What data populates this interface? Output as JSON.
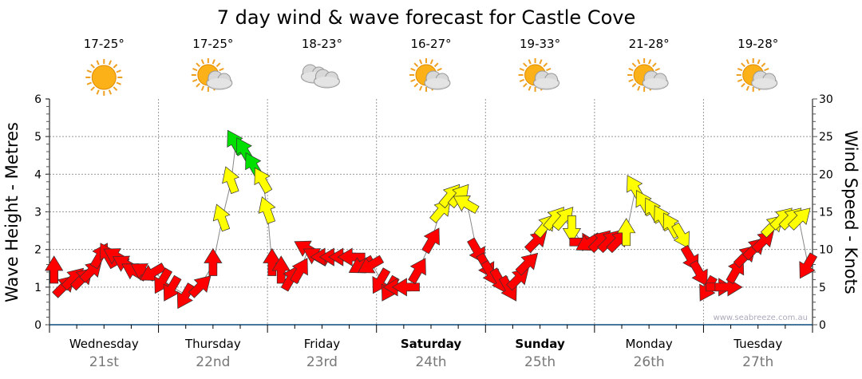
{
  "chart_data": {
    "type": "scatter",
    "title": "7 day wind & wave forecast for Castle Cove",
    "ylabel_left": "Wave Height - Metres",
    "ylabel_right": "Wind Speed - Knots",
    "ylim_left": [
      0,
      6
    ],
    "ylim_right": [
      0,
      30
    ],
    "yticks_left": [
      "0",
      "1",
      "2",
      "3",
      "4",
      "5",
      "6"
    ],
    "yticks_right": [
      "0",
      "5",
      "10",
      "15",
      "20",
      "25",
      "30"
    ],
    "grid": true,
    "watermark": "www.seabreeze.com.au",
    "days": [
      {
        "name": "Wednesday",
        "date": "21st",
        "temp": "17-25°",
        "icon": "sun",
        "bold": false
      },
      {
        "name": "Thursday",
        "date": "22nd",
        "temp": "17-25°",
        "icon": "sun-cloud",
        "bold": false
      },
      {
        "name": "Friday",
        "date": "23rd",
        "temp": "18-23°",
        "icon": "cloud",
        "bold": false
      },
      {
        "name": "Saturday",
        "date": "24th",
        "temp": "16-27°",
        "icon": "sun-cloud",
        "bold": true
      },
      {
        "name": "Sunday",
        "date": "25th",
        "temp": "19-33°",
        "icon": "sun-cloud",
        "bold": true
      },
      {
        "name": "Monday",
        "date": "26th",
        "temp": "21-28°",
        "icon": "sun-cloud",
        "bold": false
      },
      {
        "name": "Tuesday",
        "date": "27th",
        "temp": "19-28°",
        "icon": "sun-cloud",
        "bold": false
      }
    ],
    "wind_colors": {
      "light": "#ff0000",
      "moderate": "#ffff00",
      "strong": "#00e000"
    },
    "wind_series_fields": [
      "hour",
      "knots",
      "direction_deg"
    ],
    "wind_series": [
      [
        1,
        7,
        0
      ],
      [
        3,
        5,
        45
      ],
      [
        5,
        6,
        45
      ],
      [
        7,
        6,
        45
      ],
      [
        9,
        7,
        45
      ],
      [
        11,
        9,
        30
      ],
      [
        13,
        9,
        -30
      ],
      [
        15,
        9,
        -60
      ],
      [
        17,
        8,
        -60
      ],
      [
        19,
        7,
        -60
      ],
      [
        21,
        7,
        -60
      ],
      [
        23,
        7,
        -120
      ],
      [
        25,
        6,
        -150
      ],
      [
        27,
        5,
        -150
      ],
      [
        30,
        4,
        -150
      ],
      [
        33,
        5,
        45
      ],
      [
        36,
        8,
        0
      ],
      [
        38,
        14,
        -20
      ],
      [
        40,
        19,
        -20
      ],
      [
        41,
        24,
        -30
      ],
      [
        43,
        23,
        -30
      ],
      [
        45,
        21,
        -30
      ],
      [
        47,
        19,
        -30
      ],
      [
        48,
        15,
        -20
      ],
      [
        49,
        8,
        0
      ],
      [
        51,
        7,
        0
      ],
      [
        53,
        6,
        30
      ],
      [
        55,
        7,
        30
      ],
      [
        57,
        10,
        -60
      ],
      [
        59,
        9,
        -60
      ],
      [
        61,
        9,
        -90
      ],
      [
        63,
        9,
        -90
      ],
      [
        65,
        9,
        -90
      ],
      [
        67,
        9,
        -90
      ],
      [
        69,
        8,
        -120
      ],
      [
        71,
        8,
        -120
      ],
      [
        73,
        6,
        -150
      ],
      [
        75,
        5,
        -150
      ],
      [
        77,
        5,
        -90
      ],
      [
        79,
        5,
        -90
      ],
      [
        81,
        7,
        30
      ],
      [
        84,
        11,
        30
      ],
      [
        86,
        15,
        40
      ],
      [
        88,
        17,
        40
      ],
      [
        90,
        17,
        40
      ],
      [
        92,
        16,
        -60
      ],
      [
        94,
        10,
        150
      ],
      [
        96,
        8,
        150
      ],
      [
        97,
        7,
        150
      ],
      [
        99,
        6,
        150
      ],
      [
        101,
        5,
        150
      ],
      [
        103,
        6,
        45
      ],
      [
        105,
        8,
        45
      ],
      [
        107,
        11,
        45
      ],
      [
        109,
        13,
        40
      ],
      [
        111,
        14,
        40
      ],
      [
        113,
        14,
        40
      ],
      [
        115,
        13,
        180
      ],
      [
        117,
        11,
        90
      ],
      [
        119,
        11,
        -120
      ],
      [
        121,
        11,
        45
      ],
      [
        123,
        11,
        45
      ],
      [
        125,
        11,
        45
      ],
      [
        127,
        12,
        0
      ],
      [
        129,
        18,
        -30
      ],
      [
        131,
        16,
        -30
      ],
      [
        133,
        15,
        -30
      ],
      [
        135,
        14,
        -30
      ],
      [
        137,
        13,
        -30
      ],
      [
        139,
        12,
        150
      ],
      [
        141,
        9,
        150
      ],
      [
        143,
        7,
        150
      ],
      [
        145,
        5,
        -150
      ],
      [
        147,
        5,
        90
      ],
      [
        149,
        5,
        90
      ],
      [
        151,
        7,
        30
      ],
      [
        153,
        9,
        45
      ],
      [
        155,
        10,
        45
      ],
      [
        157,
        11,
        45
      ],
      [
        159,
        13,
        45
      ],
      [
        161,
        14,
        45
      ],
      [
        163,
        14,
        45
      ],
      [
        165,
        14,
        45
      ],
      [
        167,
        8,
        -150
      ]
    ]
  }
}
